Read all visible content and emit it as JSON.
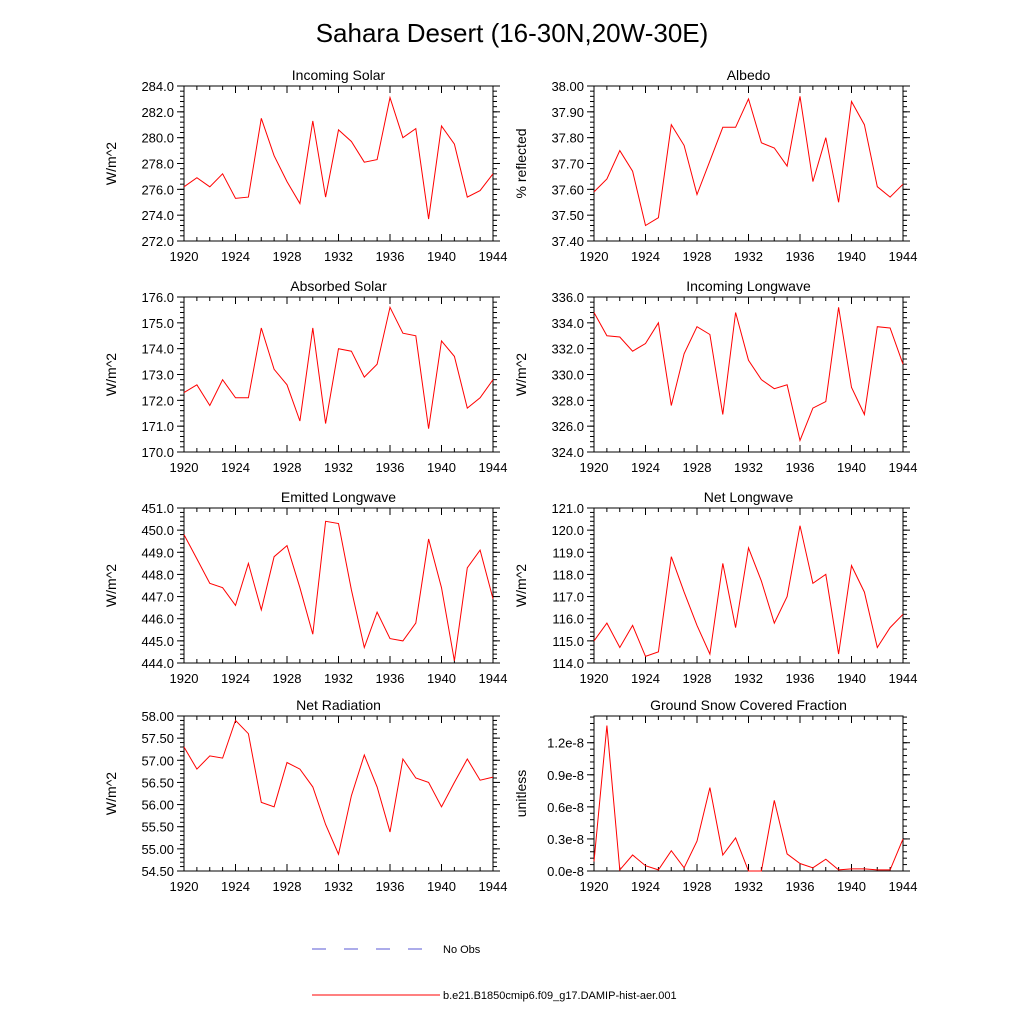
{
  "title": "Sahara Desert (16-30N,20W-30E)",
  "legend": {
    "obs_label": "No Obs",
    "obs_color": "#5a5ad6",
    "model_label": "b.e21.B1850cmip6.f09_g17.DAMIP-hist-aer.001",
    "model_color": "#ff0000"
  },
  "chart_data": [
    {
      "type": "line",
      "title": "Incoming Solar",
      "ylabel": "W/m^2",
      "xlim": [
        1920,
        1944
      ],
      "x_ticks": [
        "1920",
        "1924",
        "1928",
        "1932",
        "1936",
        "1940",
        "1944"
      ],
      "ylim": [
        272.0,
        284.0
      ],
      "y_ticks": [
        "272.0",
        "274.0",
        "276.0",
        "278.0",
        "280.0",
        "282.0",
        "284.0"
      ],
      "series": [
        {
          "x": [
            1920,
            1921,
            1922,
            1923,
            1924,
            1925,
            1926,
            1927,
            1928,
            1929,
            1930,
            1931,
            1932,
            1933,
            1934,
            1935,
            1936,
            1937,
            1938,
            1939,
            1940,
            1941,
            1942,
            1943,
            1944
          ],
          "values": [
            276.2,
            276.9,
            276.2,
            277.2,
            275.3,
            275.4,
            281.5,
            278.6,
            276.6,
            274.9,
            281.3,
            275.4,
            280.6,
            279.7,
            278.1,
            278.3,
            283.1,
            280.0,
            280.7,
            273.7,
            280.9,
            279.5,
            275.4,
            275.9,
            277.2
          ]
        }
      ]
    },
    {
      "type": "line",
      "title": "Albedo",
      "ylabel": "% reflected",
      "xlim": [
        1920,
        1944
      ],
      "x_ticks": [
        "1920",
        "1924",
        "1928",
        "1932",
        "1936",
        "1940",
        "1944"
      ],
      "ylim": [
        37.4,
        38.0
      ],
      "y_ticks": [
        "37.40",
        "37.50",
        "37.60",
        "37.70",
        "37.80",
        "37.90",
        "38.00"
      ],
      "series": [
        {
          "x": [
            1920,
            1921,
            1922,
            1923,
            1924,
            1925,
            1926,
            1927,
            1928,
            1929,
            1930,
            1931,
            1932,
            1933,
            1934,
            1935,
            1936,
            1937,
            1938,
            1939,
            1940,
            1941,
            1942,
            1943,
            1944
          ],
          "values": [
            37.59,
            37.64,
            37.75,
            37.67,
            37.46,
            37.49,
            37.85,
            37.77,
            37.58,
            37.71,
            37.84,
            37.84,
            37.95,
            37.78,
            37.76,
            37.69,
            37.96,
            37.63,
            37.8,
            37.55,
            37.94,
            37.85,
            37.61,
            37.57,
            37.62
          ]
        }
      ]
    },
    {
      "type": "line",
      "title": "Absorbed Solar",
      "ylabel": "W/m^2",
      "xlim": [
        1920,
        1944
      ],
      "x_ticks": [
        "1920",
        "1924",
        "1928",
        "1932",
        "1936",
        "1940",
        "1944"
      ],
      "ylim": [
        170.0,
        176.0
      ],
      "y_ticks": [
        "170.0",
        "171.0",
        "172.0",
        "173.0",
        "174.0",
        "175.0",
        "176.0"
      ],
      "series": [
        {
          "x": [
            1920,
            1921,
            1922,
            1923,
            1924,
            1925,
            1926,
            1927,
            1928,
            1929,
            1930,
            1931,
            1932,
            1933,
            1934,
            1935,
            1936,
            1937,
            1938,
            1939,
            1940,
            1941,
            1942,
            1943,
            1944
          ],
          "values": [
            172.3,
            172.6,
            171.8,
            172.8,
            172.1,
            172.1,
            174.8,
            173.2,
            172.6,
            171.2,
            174.8,
            171.1,
            174.0,
            173.9,
            172.9,
            173.4,
            175.6,
            174.6,
            174.5,
            170.9,
            174.3,
            173.7,
            171.7,
            172.1,
            172.8
          ]
        }
      ]
    },
    {
      "type": "line",
      "title": "Incoming Longwave",
      "ylabel": "W/m^2",
      "xlim": [
        1920,
        1944
      ],
      "x_ticks": [
        "1920",
        "1924",
        "1928",
        "1932",
        "1936",
        "1940",
        "1944"
      ],
      "ylim": [
        324.0,
        336.0
      ],
      "y_ticks": [
        "324.0",
        "326.0",
        "328.0",
        "330.0",
        "332.0",
        "334.0",
        "336.0"
      ],
      "series": [
        {
          "x": [
            1920,
            1921,
            1922,
            1923,
            1924,
            1925,
            1926,
            1927,
            1928,
            1929,
            1930,
            1931,
            1932,
            1933,
            1934,
            1935,
            1936,
            1937,
            1938,
            1939,
            1940,
            1941,
            1942,
            1943,
            1944
          ],
          "values": [
            334.8,
            333.0,
            332.9,
            331.8,
            332.4,
            334.0,
            327.6,
            331.6,
            333.7,
            333.1,
            326.9,
            334.8,
            331.1,
            329.6,
            328.9,
            329.2,
            324.9,
            327.4,
            327.9,
            335.2,
            329.0,
            326.9,
            333.7,
            333.6,
            330.8
          ]
        }
      ]
    },
    {
      "type": "line",
      "title": "Emitted Longwave",
      "ylabel": "W/m^2",
      "xlim": [
        1920,
        1944
      ],
      "x_ticks": [
        "1920",
        "1924",
        "1928",
        "1932",
        "1936",
        "1940",
        "1944"
      ],
      "ylim": [
        444.0,
        451.0
      ],
      "y_ticks": [
        "444.0",
        "445.0",
        "446.0",
        "447.0",
        "448.0",
        "449.0",
        "450.0",
        "451.0"
      ],
      "series": [
        {
          "x": [
            1920,
            1921,
            1922,
            1923,
            1924,
            1925,
            1926,
            1927,
            1928,
            1929,
            1930,
            1931,
            1932,
            1933,
            1934,
            1935,
            1936,
            1937,
            1938,
            1939,
            1940,
            1941,
            1942,
            1943,
            1944
          ],
          "values": [
            449.8,
            448.7,
            447.6,
            447.4,
            446.6,
            448.5,
            446.4,
            448.8,
            449.3,
            447.4,
            445.3,
            450.4,
            450.3,
            447.3,
            444.7,
            446.3,
            445.1,
            445.0,
            445.8,
            449.6,
            447.4,
            444.1,
            448.3,
            449.1,
            446.9
          ]
        }
      ]
    },
    {
      "type": "line",
      "title": "Net Longwave",
      "ylabel": "W/m^2",
      "xlim": [
        1920,
        1944
      ],
      "x_ticks": [
        "1920",
        "1924",
        "1928",
        "1932",
        "1936",
        "1940",
        "1944"
      ],
      "ylim": [
        114.0,
        121.0
      ],
      "y_ticks": [
        "114.0",
        "115.0",
        "116.0",
        "117.0",
        "118.0",
        "119.0",
        "120.0",
        "121.0"
      ],
      "series": [
        {
          "x": [
            1920,
            1921,
            1922,
            1923,
            1924,
            1925,
            1926,
            1927,
            1928,
            1929,
            1930,
            1931,
            1932,
            1933,
            1934,
            1935,
            1936,
            1937,
            1938,
            1939,
            1940,
            1941,
            1942,
            1943,
            1944
          ],
          "values": [
            115.0,
            115.8,
            114.7,
            115.7,
            114.3,
            114.5,
            118.8,
            117.2,
            115.7,
            114.4,
            118.5,
            115.6,
            119.2,
            117.7,
            115.8,
            117.0,
            120.2,
            117.6,
            118.0,
            114.4,
            118.4,
            117.2,
            114.7,
            115.6,
            116.2
          ]
        }
      ]
    },
    {
      "type": "line",
      "title": "Net Radiation",
      "ylabel": "W/m^2",
      "xlim": [
        1920,
        1944
      ],
      "x_ticks": [
        "1920",
        "1924",
        "1928",
        "1932",
        "1936",
        "1940",
        "1944"
      ],
      "ylim": [
        54.5,
        58.0
      ],
      "y_ticks": [
        "54.50",
        "55.00",
        "55.50",
        "56.00",
        "56.50",
        "57.00",
        "57.50",
        "58.00"
      ],
      "series": [
        {
          "x": [
            1920,
            1921,
            1922,
            1923,
            1924,
            1925,
            1926,
            1927,
            1928,
            1929,
            1930,
            1931,
            1932,
            1933,
            1934,
            1935,
            1936,
            1937,
            1938,
            1939,
            1940,
            1941,
            1942,
            1943,
            1944
          ],
          "values": [
            57.3,
            56.8,
            57.1,
            57.05,
            57.9,
            57.6,
            56.05,
            55.95,
            56.95,
            56.8,
            56.4,
            55.55,
            54.88,
            56.2,
            57.12,
            56.4,
            55.38,
            57.03,
            56.6,
            56.5,
            55.95,
            56.5,
            57.03,
            56.55,
            56.62
          ]
        }
      ]
    },
    {
      "type": "line",
      "title": "Ground Snow Covered Fraction",
      "ylabel": "unitless",
      "xlim": [
        1920,
        1944
      ],
      "x_ticks": [
        "1920",
        "1924",
        "1928",
        "1932",
        "1936",
        "1940",
        "1944"
      ],
      "ylim": [
        0.0,
        1.45
      ],
      "y_ticks": [
        "0.0e-8",
        "0.3e-8",
        "0.6e-8",
        "0.9e-8",
        "1.2e-8"
      ],
      "y_tick_values": [
        0.0,
        0.3,
        0.6,
        0.9,
        1.2
      ],
      "y_multiplier": "e-8",
      "series": [
        {
          "x": [
            1920,
            1921,
            1922,
            1923,
            1924,
            1925,
            1926,
            1927,
            1928,
            1929,
            1930,
            1931,
            1932,
            1933,
            1934,
            1935,
            1936,
            1937,
            1938,
            1939,
            1940,
            1941,
            1942,
            1943,
            1944
          ],
          "values": [
            0.09,
            1.36,
            0.01,
            0.15,
            0.05,
            0.01,
            0.19,
            0.03,
            0.28,
            0.78,
            0.15,
            0.31,
            0.0,
            0.0,
            0.66,
            0.16,
            0.07,
            0.03,
            0.11,
            0.01,
            0.02,
            0.02,
            0.01,
            0.01,
            0.3
          ]
        }
      ]
    }
  ]
}
